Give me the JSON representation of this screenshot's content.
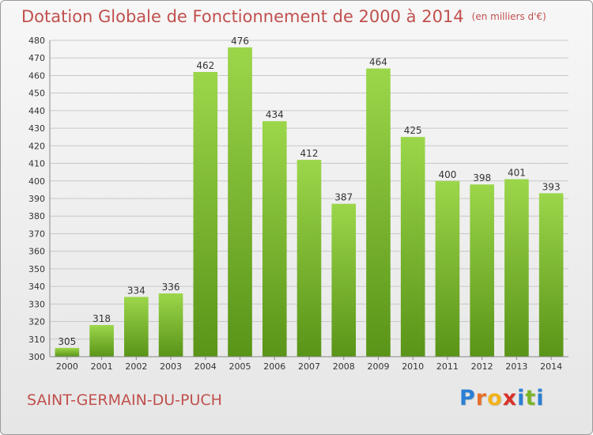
{
  "title": "Dotation Globale de Fonctionnement de 2000 à 2014",
  "unit_label": "(en milliers d'€)",
  "commune": "SAINT-GERMAIN-DU-PUCH",
  "logo": {
    "letters": [
      "P",
      "r",
      "o",
      "x",
      "i",
      "t",
      "i"
    ],
    "colors": [
      "#2a7fd4",
      "#e8702a",
      "#f2b21c",
      "#d8322a",
      "#2a7fd4",
      "#7ab528",
      "#2a7fd4"
    ]
  },
  "colors": {
    "title": "#c0504d",
    "bar_light": "#9bd64a",
    "bar_dark": "#5a9418",
    "grid": "#c8c8c8"
  },
  "chart_data": {
    "type": "bar",
    "categories": [
      "2000",
      "2001",
      "2002",
      "2003",
      "2004",
      "2005",
      "2006",
      "2007",
      "2008",
      "2009",
      "2010",
      "2011",
      "2012",
      "2013",
      "2014"
    ],
    "values": [
      305,
      318,
      334,
      336,
      462,
      476,
      434,
      412,
      387,
      464,
      425,
      400,
      398,
      401,
      393
    ],
    "ylim": [
      300,
      480
    ],
    "yticks": [
      300,
      310,
      320,
      330,
      340,
      350,
      360,
      370,
      380,
      390,
      400,
      410,
      420,
      430,
      440,
      450,
      460,
      470,
      480
    ],
    "grid": true,
    "data_labels": true
  }
}
